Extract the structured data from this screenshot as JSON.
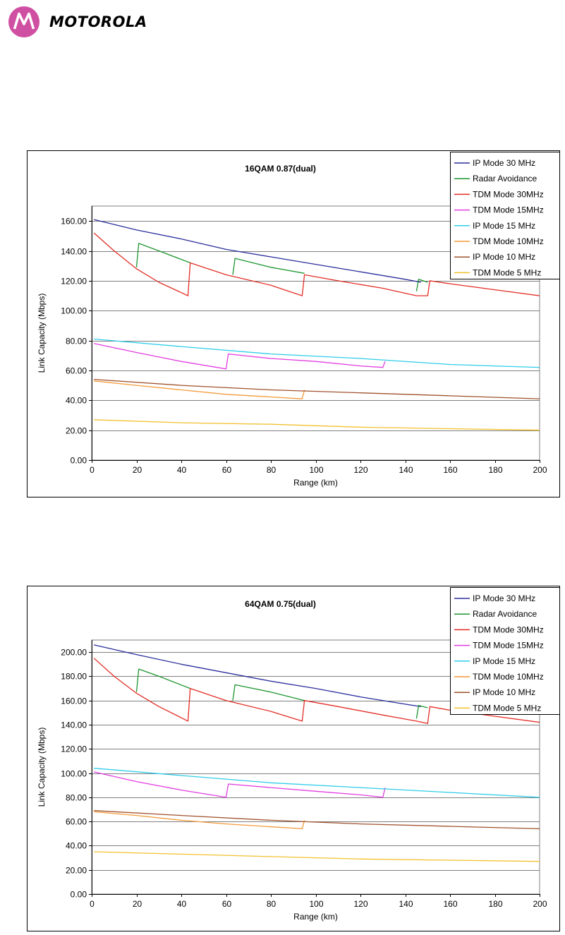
{
  "brand": {
    "name": "MOTOROLA"
  },
  "colors": {
    "logo": "#CF4FA2",
    "ip30": "#2B2F9C",
    "radar": "#1E9630",
    "tdm30": "#E32D25",
    "tdm15": "#E23DE0",
    "ip15": "#2FCDE8",
    "tdm10": "#F39A3A",
    "ip10": "#A0522D",
    "tdm5": "#F2C12E",
    "plot_area": "#FFFFFF",
    "grid": "#808080"
  },
  "chart_data": [
    {
      "type": "line",
      "title": "16QAM 0.87(dual)",
      "xlabel": "Range (km)",
      "ylabel": "Link Capacity (Mbps)",
      "xlim": [
        0,
        200
      ],
      "ylim": [
        0,
        170
      ],
      "xticks": [
        "0",
        "20",
        "40",
        "60",
        "80",
        "100",
        "120",
        "140",
        "160",
        "180",
        "200"
      ],
      "yticks": [
        "0.00",
        "20.00",
        "40.00",
        "60.00",
        "80.00",
        "100.00",
        "120.00",
        "140.00",
        "160.00"
      ],
      "grid": true,
      "legend_position": "top-right",
      "series": [
        {
          "name": "IP Mode 30 MHz",
          "color": "#2B2F9C",
          "segments": [
            [
              [
                1,
                161
              ],
              [
                20,
                154
              ],
              [
                40,
                148
              ],
              [
                60,
                141
              ],
              [
                80,
                136
              ],
              [
                100,
                131
              ],
              [
                120,
                126
              ],
              [
                140,
                121
              ],
              [
                147,
                119
              ]
            ]
          ]
        },
        {
          "name": "Radar Avoidance",
          "color": "#1E9630",
          "segments": [
            [
              [
                20,
                129
              ],
              [
                21,
                145
              ],
              [
                30,
                140
              ],
              [
                44,
                132
              ]
            ],
            [
              [
                63,
                124
              ],
              [
                64,
                135
              ],
              [
                80,
                129
              ],
              [
                95,
                125
              ]
            ],
            [
              [
                145,
                113
              ],
              [
                146,
                121
              ],
              [
                150,
                119
              ]
            ]
          ]
        },
        {
          "name": "TDM Mode 30MHz",
          "color": "#E32D25",
          "segments": [
            [
              [
                1,
                152
              ],
              [
                10,
                140
              ],
              [
                20,
                128
              ],
              [
                30,
                119
              ],
              [
                43,
                110
              ],
              [
                44,
                132
              ],
              [
                60,
                124
              ],
              [
                80,
                117
              ],
              [
                94,
                110
              ],
              [
                95,
                124
              ],
              [
                110,
                120
              ],
              [
                130,
                115
              ],
              [
                145,
                110
              ],
              [
                150,
                110
              ],
              [
                151,
                120
              ],
              [
                160,
                118
              ],
              [
                180,
                114
              ],
              [
                200,
                110
              ]
            ]
          ]
        },
        {
          "name": "TDM Mode 15MHz",
          "color": "#E23DE0",
          "segments": [
            [
              [
                1,
                78
              ],
              [
                20,
                72
              ],
              [
                40,
                66
              ],
              [
                60,
                61
              ],
              [
                61,
                71
              ],
              [
                80,
                68
              ],
              [
                100,
                66
              ],
              [
                120,
                63
              ],
              [
                130,
                62
              ],
              [
                131,
                66
              ]
            ]
          ]
        },
        {
          "name": "IP Mode 15 MHz",
          "color": "#2FCDE8",
          "segments": [
            [
              [
                1,
                81
              ],
              [
                40,
                76
              ],
              [
                80,
                71
              ],
              [
                120,
                68
              ],
              [
                160,
                64
              ],
              [
                200,
                62
              ]
            ]
          ]
        },
        {
          "name": "TDM Mode 10MHz",
          "color": "#F39A3A",
          "segments": [
            [
              [
                1,
                53
              ],
              [
                20,
                50
              ],
              [
                40,
                47
              ],
              [
                60,
                44
              ],
              [
                94,
                41
              ],
              [
                95,
                47
              ]
            ]
          ]
        },
        {
          "name": "IP Mode 10 MHz",
          "color": "#A0522D",
          "segments": [
            [
              [
                1,
                54
              ],
              [
                40,
                50
              ],
              [
                80,
                47
              ],
              [
                120,
                45
              ],
              [
                160,
                43
              ],
              [
                200,
                41
              ]
            ]
          ]
        },
        {
          "name": "TDM Mode 5 MHz",
          "color": "#F2C12E",
          "segments": [
            [
              [
                1,
                27
              ],
              [
                40,
                25
              ],
              [
                80,
                24
              ],
              [
                120,
                22
              ],
              [
                160,
                21
              ],
              [
                200,
                20
              ]
            ]
          ]
        }
      ]
    },
    {
      "type": "line",
      "title": "64QAM 0.75(dual)",
      "xlabel": "Range (km)",
      "ylabel": "Link Capacity (Mbps)",
      "xlim": [
        0,
        200
      ],
      "ylim": [
        0,
        210
      ],
      "xticks": [
        "0",
        "20",
        "40",
        "60",
        "80",
        "100",
        "120",
        "140",
        "160",
        "180",
        "200"
      ],
      "yticks": [
        "0.00",
        "20.00",
        "40.00",
        "60.00",
        "80.00",
        "100.00",
        "120.00",
        "140.00",
        "160.00",
        "180.00",
        "200.00"
      ],
      "grid": true,
      "legend_position": "top-right",
      "series": [
        {
          "name": "IP Mode 30 MHz",
          "color": "#2B2F9C",
          "segments": [
            [
              [
                1,
                206
              ],
              [
                20,
                198
              ],
              [
                40,
                190
              ],
              [
                60,
                183
              ],
              [
                80,
                176
              ],
              [
                100,
                170
              ],
              [
                120,
                163
              ],
              [
                140,
                157
              ],
              [
                147,
                155
              ]
            ]
          ]
        },
        {
          "name": "Radar Avoidance",
          "color": "#1E9630",
          "segments": [
            [
              [
                20,
                167
              ],
              [
                21,
                186
              ],
              [
                30,
                180
              ],
              [
                44,
                170
              ]
            ],
            [
              [
                63,
                160
              ],
              [
                64,
                173
              ],
              [
                80,
                167
              ],
              [
                95,
                160
              ]
            ],
            [
              [
                145,
                145
              ],
              [
                146,
                156
              ],
              [
                150,
                154
              ]
            ]
          ]
        },
        {
          "name": "TDM Mode 30MHz",
          "color": "#E32D25",
          "segments": [
            [
              [
                1,
                195
              ],
              [
                10,
                180
              ],
              [
                20,
                166
              ],
              [
                30,
                155
              ],
              [
                43,
                143
              ],
              [
                44,
                170
              ],
              [
                60,
                160
              ],
              [
                80,
                151
              ],
              [
                94,
                143
              ],
              [
                95,
                160
              ],
              [
                110,
                155
              ],
              [
                130,
                148
              ],
              [
                145,
                143
              ],
              [
                150,
                141
              ],
              [
                151,
                155
              ],
              [
                160,
                152
              ],
              [
                180,
                147
              ],
              [
                200,
                142
              ]
            ]
          ]
        },
        {
          "name": "TDM Mode 15MHz",
          "color": "#E23DE0",
          "segments": [
            [
              [
                1,
                101
              ],
              [
                20,
                93
              ],
              [
                40,
                86
              ],
              [
                60,
                80
              ],
              [
                61,
                91
              ],
              [
                80,
                88
              ],
              [
                100,
                85
              ],
              [
                120,
                82
              ],
              [
                130,
                80
              ],
              [
                131,
                88
              ]
            ]
          ]
        },
        {
          "name": "IP Mode 15 MHz",
          "color": "#2FCDE8",
          "segments": [
            [
              [
                1,
                104
              ],
              [
                40,
                98
              ],
              [
                80,
                92
              ],
              [
                120,
                88
              ],
              [
                160,
                84
              ],
              [
                200,
                80
              ]
            ]
          ]
        },
        {
          "name": "TDM Mode 10MHz",
          "color": "#F39A3A",
          "segments": [
            [
              [
                1,
                68
              ],
              [
                20,
                65
              ],
              [
                40,
                61
              ],
              [
                60,
                58
              ],
              [
                94,
                54
              ],
              [
                95,
                61
              ]
            ]
          ]
        },
        {
          "name": "IP Mode 10 MHz",
          "color": "#A0522D",
          "segments": [
            [
              [
                1,
                69
              ],
              [
                40,
                65
              ],
              [
                80,
                61
              ],
              [
                120,
                58
              ],
              [
                160,
                56
              ],
              [
                200,
                54
              ]
            ]
          ]
        },
        {
          "name": "TDM Mode 5 MHz",
          "color": "#F2C12E",
          "segments": [
            [
              [
                1,
                35
              ],
              [
                40,
                33
              ],
              [
                80,
                31
              ],
              [
                120,
                29
              ],
              [
                160,
                28
              ],
              [
                200,
                27
              ]
            ]
          ]
        }
      ]
    }
  ]
}
